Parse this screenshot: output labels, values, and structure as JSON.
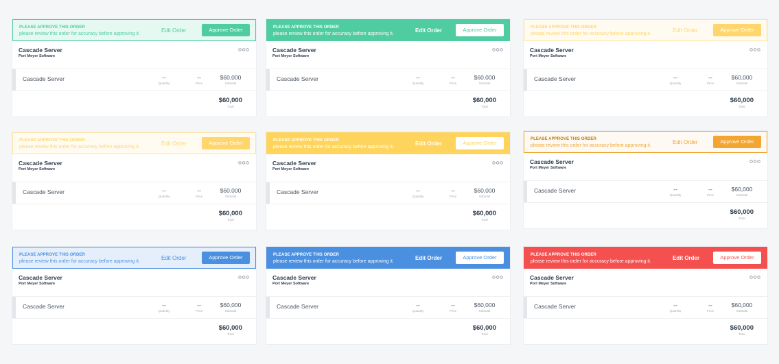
{
  "cards": [
    {
      "color": "#4fcca0",
      "banner_title": "PLEASE APPROVE THIS ORDER",
      "banner_text": "please review this order for accuracy before approving it.",
      "edit": "Edit Order",
      "approve": "Approve Order",
      "product": "Cascade Server",
      "vendor": "Port Meyer Software",
      "item": {
        "name": "Cascade Server",
        "quantity": "--",
        "quantity_label": "Quantity",
        "price": "--",
        "price_label": "Price",
        "subtotal": "$60,000",
        "subtotal_label": "Subtotal"
      },
      "total": "$60,000",
      "total_label": "Total"
    },
    {
      "color": "#4fcca0",
      "banner_title": "PLEASE APPROVE THIS ORDER",
      "banner_text": "please review this order for accuracy before approving it.",
      "edit": "Edit Order",
      "approve": "Approve Order",
      "product": "Cascade Server",
      "vendor": "Port Meyer Software",
      "item": {
        "name": "Cascade Server",
        "quantity": "--",
        "quantity_label": "Quantity",
        "price": "--",
        "price_label": "Price",
        "subtotal": "$60,000",
        "subtotal_label": "Subtotal"
      },
      "total": "$60,000",
      "total_label": "Total"
    },
    {
      "color": "#ffd66e",
      "banner_title": "PLEASE APPROVE THIS ORDER",
      "banner_text": "please review this order for accuracy before approving it.",
      "edit": "Edit Order",
      "approve": "Approve Order",
      "product": "Cascade Server",
      "vendor": "Port Meyer Software",
      "item": {
        "name": "Cascade Server",
        "quantity": "--",
        "quantity_label": "Quantity",
        "price": "--",
        "price_label": "Price",
        "subtotal": "$60,000",
        "subtotal_label": "Subtotal"
      },
      "total": "$60,000",
      "total_label": "Total"
    },
    {
      "color": "#ffd66e",
      "banner_title": "PLEASE APPROVE THIS ORDER",
      "banner_text": "please review this order for accuracy before approving it.",
      "edit": "Edit Order",
      "approve": "Approve Order",
      "product": "Cascade Server",
      "vendor": "Port Meyer Software",
      "item": {
        "name": "Cascade Server",
        "quantity": "--",
        "quantity_label": "Quantity",
        "price": "--",
        "price_label": "Price",
        "subtotal": "$60,000",
        "subtotal_label": "Subtotal"
      },
      "total": "$60,000",
      "total_label": "Total"
    },
    {
      "color": "#ffd45c",
      "banner_title": "PLEASE APPROVE THIS ORDER",
      "banner_text": "please review this order for accuracy before approving it.",
      "edit": "Edit Order",
      "approve": "Approve Order",
      "product": "Cascade Server",
      "vendor": "Port Meyer Software",
      "item": {
        "name": "Cascade Server",
        "quantity": "--",
        "quantity_label": "Quantity",
        "price": "--",
        "price_label": "Price",
        "subtotal": "$60,000",
        "subtotal_label": "Subtotal"
      },
      "total": "$60,000",
      "total_label": "Total"
    },
    {
      "color": "#f2a531",
      "banner_title": "PLEASE APPROVE THIS ORDER",
      "banner_text": "please review this order for accuracy before approving it.",
      "edit": "Edit Order",
      "approve": "Approve Order",
      "product": "Cascade Server",
      "vendor": "Port Meyer Software",
      "item": {
        "name": "Cascade Server",
        "quantity": "--",
        "quantity_label": "Quantity",
        "price": "--",
        "price_label": "Price",
        "subtotal": "$60,000",
        "subtotal_label": "Subtotal"
      },
      "total": "$60,000",
      "total_label": "Total"
    },
    {
      "color": "#4a8fe0",
      "banner_title": "PLEASE APPROVE THIS ORDER",
      "banner_text": "please review this order for accuracy before approving it.",
      "edit": "Edit Order",
      "approve": "Approve Order",
      "product": "Cascade Server",
      "vendor": "Port Meyer Software",
      "item": {
        "name": "Cascade Server",
        "quantity": "--",
        "quantity_label": "Quantity",
        "price": "--",
        "price_label": "Price",
        "subtotal": "$60,000",
        "subtotal_label": "Subtotal"
      },
      "total": "$60,000",
      "total_label": "Total"
    },
    {
      "color": "#4a8fe0",
      "banner_title": "PLEASE APPROVE THIS ORDER",
      "banner_text": "please review this order for accuracy before approving it.",
      "edit": "Edit Order",
      "approve": "Approve Order",
      "product": "Cascade Server",
      "vendor": "Port Meyer Software",
      "item": {
        "name": "Cascade Server",
        "quantity": "--",
        "quantity_label": "Quantity",
        "price": "--",
        "price_label": "Price",
        "subtotal": "$60,000",
        "subtotal_label": "Subtotal"
      },
      "total": "$60,000",
      "total_label": "Total"
    },
    {
      "color": "#f45050",
      "banner_title": "PLEASE APPROVE THIS ORDER",
      "banner_text": "please review this order for accuracy before approving it.",
      "edit": "Edit Order",
      "approve": "Approve Order",
      "product": "Cascade Server",
      "vendor": "Port Meyer Software",
      "item": {
        "name": "Cascade Server",
        "quantity": "--",
        "quantity_label": "Quantity",
        "price": "--",
        "price_label": "Price",
        "subtotal": "$60,000",
        "subtotal_label": "Subtotal"
      },
      "total": "$60,000",
      "total_label": "Total"
    }
  ]
}
